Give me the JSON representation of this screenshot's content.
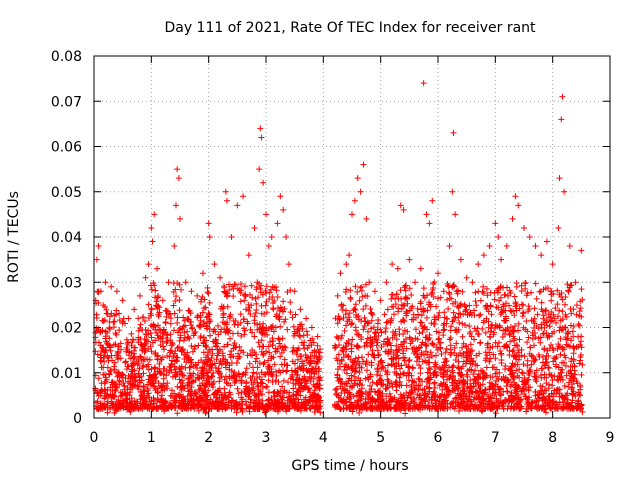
{
  "chart_data": {
    "type": "scatter",
    "title": "Day 111 of 2021, Rate Of TEC Index for receiver rant",
    "xlabel": "GPS time / hours",
    "ylabel": "ROTI / TECUs",
    "xlim": [
      0,
      9
    ],
    "ylim": [
      0,
      0.08
    ],
    "xticks": [
      0,
      1,
      2,
      3,
      4,
      5,
      6,
      7,
      8,
      9
    ],
    "xtick_labels": [
      "0",
      "1",
      "2",
      "3",
      "4",
      "5",
      "6",
      "7",
      "8",
      "9"
    ],
    "yticks": [
      0,
      0.01,
      0.02,
      0.03,
      0.04,
      0.05,
      0.06,
      0.07,
      0.08
    ],
    "ytick_labels": [
      "0",
      "0.01",
      "0.02",
      "0.03",
      "0.04",
      "0.05",
      "0.06",
      "0.07",
      "0.08"
    ],
    "grid": true,
    "marker": "plus",
    "series_color": "#ff0000",
    "data_gap_hours": [
      3.95,
      4.2
    ],
    "series": [
      {
        "name": "ROTI",
        "points": [
          [
            0.05,
            0.035
          ],
          [
            0.08,
            0.038
          ],
          [
            0.12,
            0.028
          ],
          [
            0.2,
            0.03
          ],
          [
            0.3,
            0.029
          ],
          [
            0.4,
            0.028
          ],
          [
            0.5,
            0.026
          ],
          [
            0.6,
            0.022
          ],
          [
            0.7,
            0.024
          ],
          [
            0.8,
            0.027
          ],
          [
            0.9,
            0.031
          ],
          [
            0.95,
            0.034
          ],
          [
            1.0,
            0.042
          ],
          [
            1.02,
            0.039
          ],
          [
            1.05,
            0.045
          ],
          [
            1.1,
            0.033
          ],
          [
            1.2,
            0.026
          ],
          [
            1.3,
            0.03
          ],
          [
            1.4,
            0.038
          ],
          [
            1.43,
            0.047
          ],
          [
            1.45,
            0.055
          ],
          [
            1.48,
            0.053
          ],
          [
            1.5,
            0.044
          ],
          [
            1.6,
            0.03
          ],
          [
            1.7,
            0.028
          ],
          [
            1.8,
            0.027
          ],
          [
            1.9,
            0.032
          ],
          [
            2.0,
            0.043
          ],
          [
            2.02,
            0.04
          ],
          [
            2.1,
            0.034
          ],
          [
            2.2,
            0.031
          ],
          [
            2.3,
            0.05
          ],
          [
            2.32,
            0.048
          ],
          [
            2.4,
            0.04
          ],
          [
            2.5,
            0.047
          ],
          [
            2.6,
            0.049
          ],
          [
            2.7,
            0.036
          ],
          [
            2.8,
            0.042
          ],
          [
            2.88,
            0.055
          ],
          [
            2.9,
            0.064
          ],
          [
            2.92,
            0.062
          ],
          [
            2.95,
            0.052
          ],
          [
            3.0,
            0.045
          ],
          [
            3.05,
            0.038
          ],
          [
            3.1,
            0.04
          ],
          [
            3.2,
            0.043
          ],
          [
            3.25,
            0.049
          ],
          [
            3.3,
            0.046
          ],
          [
            3.35,
            0.04
          ],
          [
            3.4,
            0.034
          ],
          [
            3.5,
            0.028
          ],
          [
            3.6,
            0.024
          ],
          [
            3.7,
            0.022
          ],
          [
            3.8,
            0.02
          ],
          [
            3.9,
            0.018
          ],
          [
            4.25,
            0.027
          ],
          [
            4.3,
            0.032
          ],
          [
            4.4,
            0.034
          ],
          [
            4.45,
            0.036
          ],
          [
            4.5,
            0.045
          ],
          [
            4.55,
            0.048
          ],
          [
            4.6,
            0.053
          ],
          [
            4.65,
            0.05
          ],
          [
            4.7,
            0.056
          ],
          [
            4.75,
            0.044
          ],
          [
            4.8,
            0.03
          ],
          [
            4.9,
            0.028
          ],
          [
            5.0,
            0.026
          ],
          [
            5.1,
            0.03
          ],
          [
            5.2,
            0.034
          ],
          [
            5.3,
            0.033
          ],
          [
            5.35,
            0.047
          ],
          [
            5.4,
            0.046
          ],
          [
            5.5,
            0.035
          ],
          [
            5.6,
            0.03
          ],
          [
            5.7,
            0.033
          ],
          [
            5.75,
            0.074
          ],
          [
            5.8,
            0.045
          ],
          [
            5.85,
            0.043
          ],
          [
            5.9,
            0.048
          ],
          [
            6.0,
            0.032
          ],
          [
            6.1,
            0.028
          ],
          [
            6.2,
            0.038
          ],
          [
            6.25,
            0.05
          ],
          [
            6.27,
            0.063
          ],
          [
            6.3,
            0.045
          ],
          [
            6.4,
            0.035
          ],
          [
            6.5,
            0.031
          ],
          [
            6.6,
            0.03
          ],
          [
            6.7,
            0.034
          ],
          [
            6.8,
            0.036
          ],
          [
            6.9,
            0.038
          ],
          [
            7.0,
            0.043
          ],
          [
            7.05,
            0.04
          ],
          [
            7.1,
            0.035
          ],
          [
            7.2,
            0.038
          ],
          [
            7.3,
            0.044
          ],
          [
            7.35,
            0.049
          ],
          [
            7.4,
            0.047
          ],
          [
            7.5,
            0.042
          ],
          [
            7.6,
            0.04
          ],
          [
            7.7,
            0.038
          ],
          [
            7.8,
            0.036
          ],
          [
            7.9,
            0.039
          ],
          [
            8.0,
            0.034
          ],
          [
            8.1,
            0.042
          ],
          [
            8.12,
            0.053
          ],
          [
            8.15,
            0.066
          ],
          [
            8.17,
            0.071
          ],
          [
            8.2,
            0.05
          ],
          [
            8.3,
            0.038
          ],
          [
            8.4,
            0.03
          ],
          [
            8.5,
            0.037
          ]
        ]
      }
    ]
  }
}
